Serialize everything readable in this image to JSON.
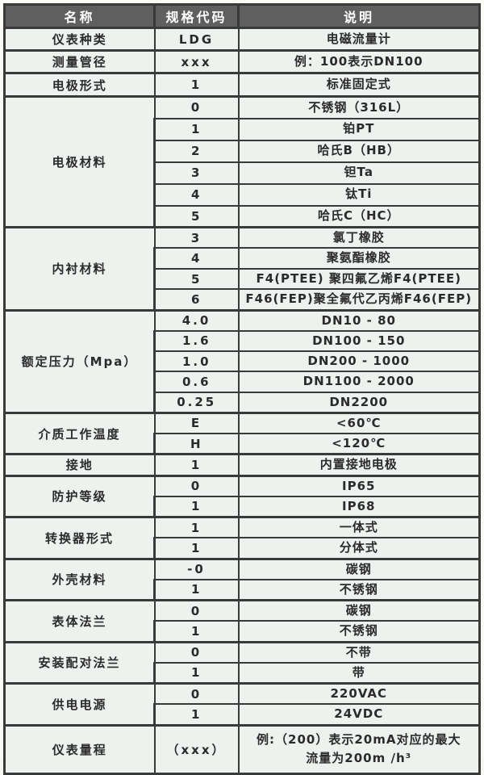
{
  "colors": {
    "header_bg": "#5f5f5f",
    "header_text": "#ffffff",
    "cell_bg": "#edf2ee",
    "border": "#3a3a3a",
    "text": "#2b2b2b",
    "page_bg": "#fafaf7"
  },
  "table": {
    "headers": [
      "名称",
      "规格代码",
      "说明"
    ],
    "groups": [
      {
        "name": "仪表种类",
        "rows": [
          {
            "code": "LDG",
            "desc": "电磁流量计"
          }
        ]
      },
      {
        "name": "测量管径",
        "rows": [
          {
            "code": "xxx",
            "desc": "例：100表示DN100"
          }
        ]
      },
      {
        "name": "电极形式",
        "rows": [
          {
            "code": "1",
            "desc": "标准固定式"
          }
        ]
      },
      {
        "name": "电极材料",
        "rows": [
          {
            "code": "0",
            "desc": "不锈钢（316L）"
          },
          {
            "code": "1",
            "desc": "铂PT"
          },
          {
            "code": "2",
            "desc": "哈氏B（HB）"
          },
          {
            "code": "3",
            "desc": "钽Ta"
          },
          {
            "code": "4",
            "desc": "钛Ti"
          },
          {
            "code": "5",
            "desc": "哈氏C（HC）"
          }
        ]
      },
      {
        "name": "内衬材料",
        "rows": [
          {
            "code": "3",
            "desc": "氯丁橡胶"
          },
          {
            "code": "4",
            "desc": "聚氨酯橡胶"
          },
          {
            "code": "5",
            "desc": "F4(PTEE) 聚四氟乙烯F4(PTEE)"
          },
          {
            "code": "6",
            "desc": "F46(FEP)聚全氟代乙丙烯F46(FEP)"
          }
        ]
      },
      {
        "name": "额定压力（Mpa）",
        "rows": [
          {
            "code": "4.0",
            "desc": "DN10 - 80"
          },
          {
            "code": "1.6",
            "desc": "DN100 - 150"
          },
          {
            "code": "1.0",
            "desc": "DN200 - 1000"
          },
          {
            "code": "0.6",
            "desc": "DN1100 - 2000"
          },
          {
            "code": "0.25",
            "desc": "DN2200"
          }
        ]
      },
      {
        "name": "介质工作温度",
        "rows": [
          {
            "code": "E",
            "desc": "<60℃"
          },
          {
            "code": "H",
            "desc": "<120℃"
          }
        ]
      },
      {
        "name": "接地",
        "rows": [
          {
            "code": "1",
            "desc": "内置接地电极"
          }
        ]
      },
      {
        "name": "防护等级",
        "rows": [
          {
            "code": "0",
            "desc": "IP65"
          },
          {
            "code": "1",
            "desc": "IP68"
          }
        ]
      },
      {
        "name": "转换器形式",
        "rows": [
          {
            "code": "1",
            "desc": "一体式"
          },
          {
            "code": "1",
            "desc": "分体式"
          }
        ]
      },
      {
        "name": "外壳材料",
        "rows": [
          {
            "code": "-0",
            "desc": "碳钢"
          },
          {
            "code": "1",
            "desc": "不锈钢"
          }
        ]
      },
      {
        "name": "表体法兰",
        "rows": [
          {
            "code": "0",
            "desc": "碳钢"
          },
          {
            "code": "1",
            "desc": "不锈钢"
          }
        ]
      },
      {
        "name": "安装配对法兰",
        "rows": [
          {
            "code": "0",
            "desc": "不带"
          },
          {
            "code": "1",
            "desc": "带"
          }
        ]
      },
      {
        "name": "供电电源",
        "rows": [
          {
            "code": "0",
            "desc": "220VAC"
          },
          {
            "code": "1",
            "desc": "24VDC"
          }
        ]
      },
      {
        "name": "仪表量程",
        "rows": [
          {
            "code": "（xxx）",
            "desc": "例:（200）表示20mA对应的最大\n流量为200m /h³"
          }
        ]
      }
    ]
  }
}
